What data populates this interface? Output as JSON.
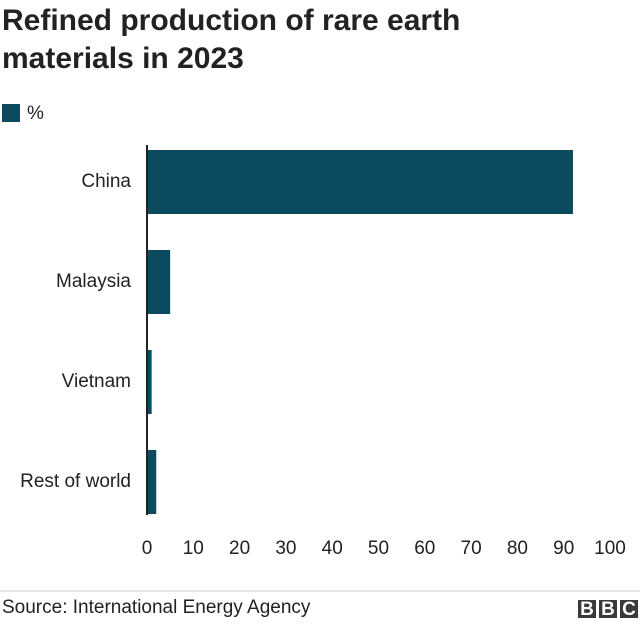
{
  "chart_data": {
    "type": "bar",
    "orientation": "horizontal",
    "title": "Refined production of rare earth materials in 2023",
    "categories": [
      "China",
      "Malaysia",
      "Vietnam",
      "Rest of world"
    ],
    "series": [
      {
        "name": "%",
        "color": "#0c4a60",
        "values": [
          92,
          5,
          1,
          2
        ]
      }
    ],
    "xlim": [
      0,
      100
    ],
    "xticks": [
      0,
      10,
      20,
      30,
      40,
      50,
      60,
      70,
      80,
      90,
      100
    ],
    "grid": false,
    "source": "Source: International Energy Agency",
    "logo": [
      "B",
      "B",
      "C"
    ]
  }
}
